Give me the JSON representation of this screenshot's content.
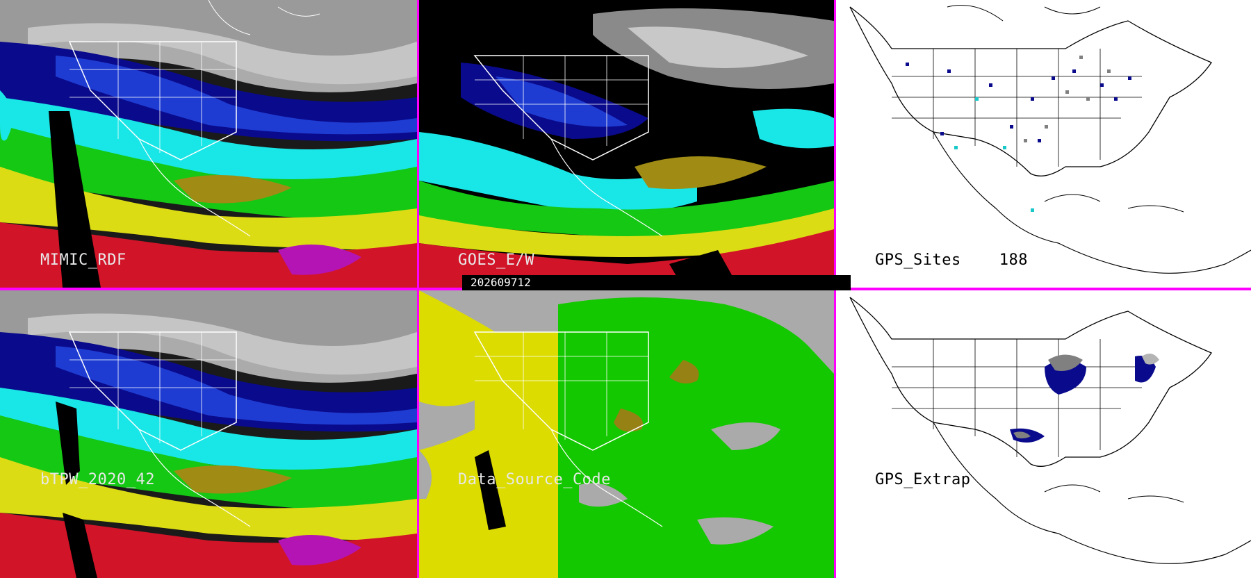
{
  "colors": {
    "divider": "#ff00ff",
    "black": "#000000",
    "white": "#ffffff",
    "gray_dry": "#b4b4b4",
    "navy": "#0a0a8c",
    "blue": "#1e3cd2",
    "cyan": "#19e6e6",
    "green": "#14c814",
    "olive": "#a08c14",
    "yellow": "#dcdc14",
    "red": "#d21428",
    "magenta": "#b414b4",
    "ds_green": "#14c800",
    "ds_yellow": "#dcdc00",
    "ds_gray": "#aaaaaa",
    "ds_olive": "#968214"
  },
  "timestamp": "202609712",
  "panels": [
    {
      "id": "mimic",
      "label": "MIMIC_RDF",
      "label_style": "dark"
    },
    {
      "id": "goes",
      "label": "GOES_E/W",
      "label_style": "dark"
    },
    {
      "id": "gps-sites",
      "label": "GPS_Sites",
      "count": "188",
      "label_style": "light"
    },
    {
      "id": "btpw",
      "label": "bTPW_2020_42",
      "label_style": "dark"
    },
    {
      "id": "data-source",
      "label": "Data_Source_Code",
      "label_style": "dark"
    },
    {
      "id": "gps-extrap",
      "label": "GPS_Extrap",
      "label_style": "light"
    }
  ]
}
